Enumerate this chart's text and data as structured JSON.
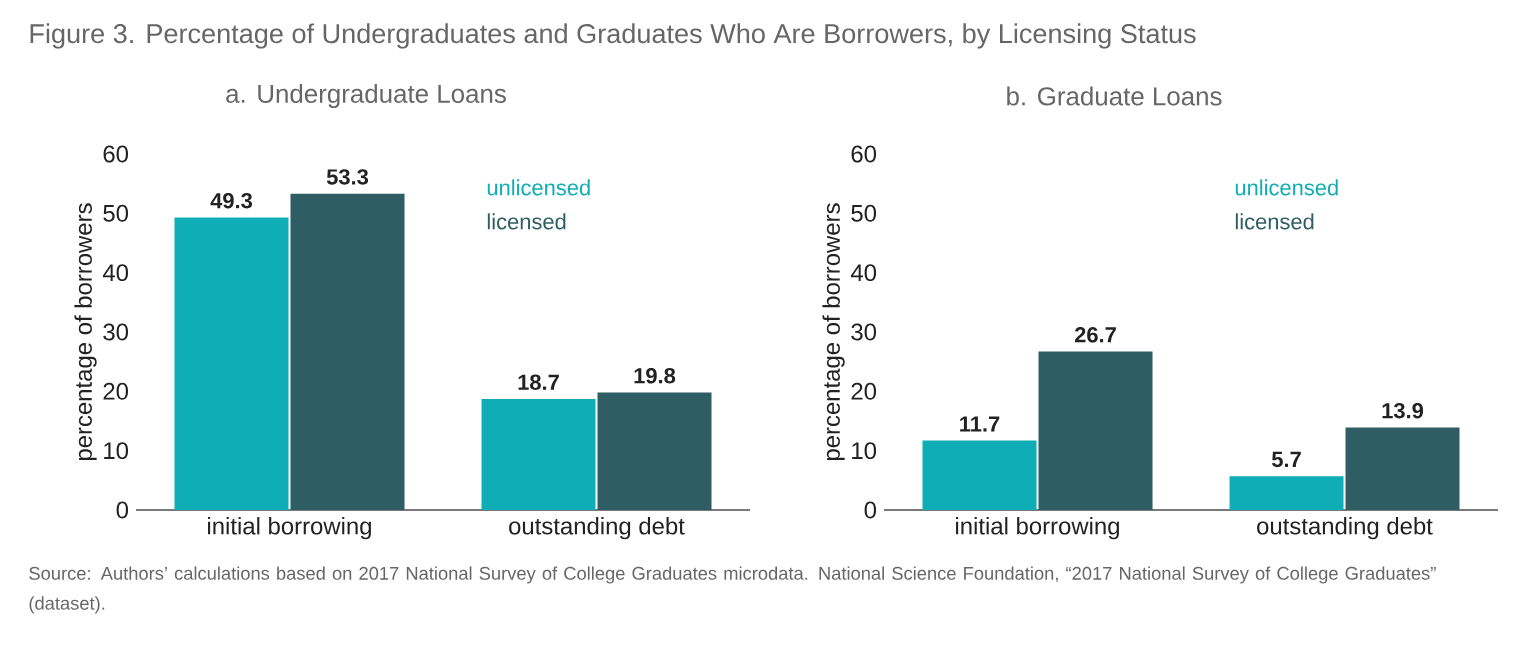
{
  "chart_data": [
    {
      "type": "bar",
      "title": "Figure 3. Percentage of Undergraduates and Graduates Who Are Borrowers, by Licensing Status",
      "subtitle": "a. Undergraduate Loans",
      "ylabel": "percentage of borrowers",
      "categories": [
        "initial borrowing",
        "outstanding debt"
      ],
      "series": [
        {
          "name": "unlicensed",
          "color": "#0fadb5",
          "values": [
            49.3,
            18.7
          ]
        },
        {
          "name": "licensed",
          "color": "#2e5d63",
          "values": [
            53.3,
            19.8
          ]
        }
      ],
      "ylim": [
        0,
        60
      ],
      "yticks": [
        0,
        10,
        20,
        30,
        40,
        50,
        60
      ],
      "data_labels": true,
      "legend": "top right",
      "annotations": [
        "Source: Authors’ calculations based on 2017 National Survey of College Graduates microdata. National Science Foundation, “2017 National Survey of College Graduates” (dataset)."
      ]
    },
    {
      "type": "bar",
      "subtitle": "b. Graduate Loans",
      "ylabel": "percentage of borrowers",
      "categories": [
        "initial borrowing",
        "outstanding debt"
      ],
      "series": [
        {
          "name": "unlicensed",
          "color": "#0fadb5",
          "values": [
            11.7,
            5.7
          ]
        },
        {
          "name": "licensed",
          "color": "#2e5d63",
          "values": [
            26.7,
            13.9
          ]
        }
      ],
      "ylim": [
        0,
        60
      ],
      "yticks": [
        0,
        10,
        20,
        30,
        40,
        50,
        60
      ],
      "data_labels": true,
      "legend": "top right"
    }
  ]
}
